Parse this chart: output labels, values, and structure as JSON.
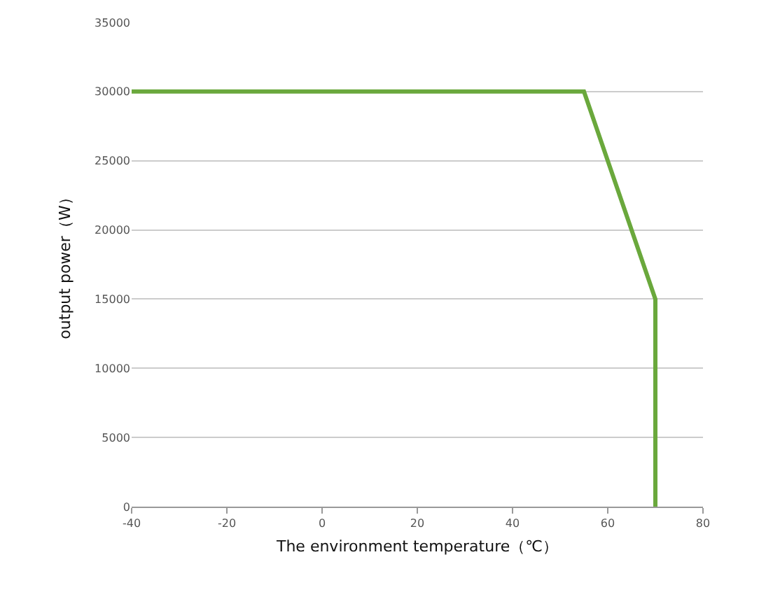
{
  "chart_data": {
    "type": "line",
    "xlabel": "The environment temperature（℃）",
    "ylabel": "output power（W）",
    "x": [
      -40,
      55,
      70,
      70
    ],
    "series": [
      {
        "color": "#6aa83c",
        "values": [
          30000,
          30000,
          15000,
          0
        ]
      }
    ],
    "xlim": [
      -40,
      80
    ],
    "xticks": [
      -40,
      -20,
      0,
      20,
      40,
      60,
      80
    ],
    "ylim": [
      0,
      35000
    ],
    "yticks": [
      0,
      5000,
      10000,
      15000,
      20000,
      25000,
      30000,
      35000
    ],
    "grid": "y",
    "marker": "none",
    "line_style": "solid"
  }
}
